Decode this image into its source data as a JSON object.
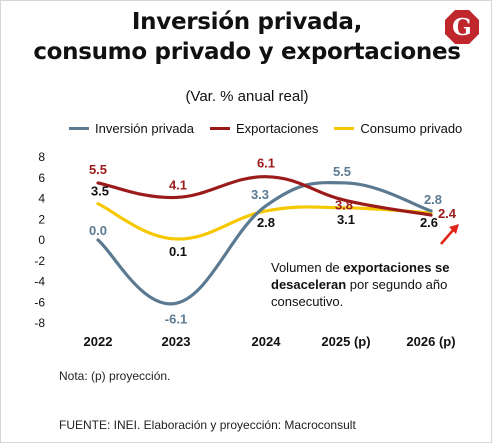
{
  "header": {
    "title_line1": "Inversión privada,",
    "title_line2": "consumo privado y exportaciones",
    "subtitle": "(Var. % anual real)",
    "logo_letter": "G"
  },
  "colors": {
    "inversion": "#5b7a91",
    "exportaciones": "#9b1b1b",
    "consumo": "#f5c800",
    "arrow": "#e0261a",
    "logo": "#c0272d"
  },
  "chart_data": {
    "type": "line",
    "categories": [
      "2022",
      "2023",
      "2024",
      "2025 (p)",
      "2026 (p)"
    ],
    "ylim": [
      -8,
      8
    ],
    "yticks": [
      "8",
      "6",
      "4",
      "2",
      "0",
      "-2",
      "-4",
      "-6",
      "-8"
    ],
    "series": [
      {
        "name": "Inversión privada",
        "key": "inversion",
        "values": [
          0.0,
          -6.1,
          3.3,
          5.5,
          2.8
        ],
        "labels": [
          "0.0",
          "-6.1",
          "3.3",
          "5.5",
          "2.8"
        ]
      },
      {
        "name": "Exportaciones",
        "key": "exportaciones",
        "values": [
          5.5,
          4.1,
          6.1,
          3.8,
          2.4
        ],
        "labels": [
          "5.5",
          "4.1",
          "6.1",
          "3.8",
          "2.4"
        ]
      },
      {
        "name": "Consumo privado",
        "key": "consumo",
        "values": [
          3.5,
          0.1,
          2.8,
          3.1,
          2.6
        ],
        "labels": [
          "3.5",
          "0.1",
          "2.8",
          "3.1",
          "2.6"
        ]
      }
    ],
    "legend_position": "top",
    "grid": false
  },
  "annotation": {
    "part1": "Volumen de ",
    "bold": "exportaciones se desaceleran",
    "part2": " por segundo año consecutivo."
  },
  "footer": {
    "note": "Nota: (p) proyección.",
    "source": "FUENTE: INEI. Elaboración y proyección: Macroconsult"
  }
}
